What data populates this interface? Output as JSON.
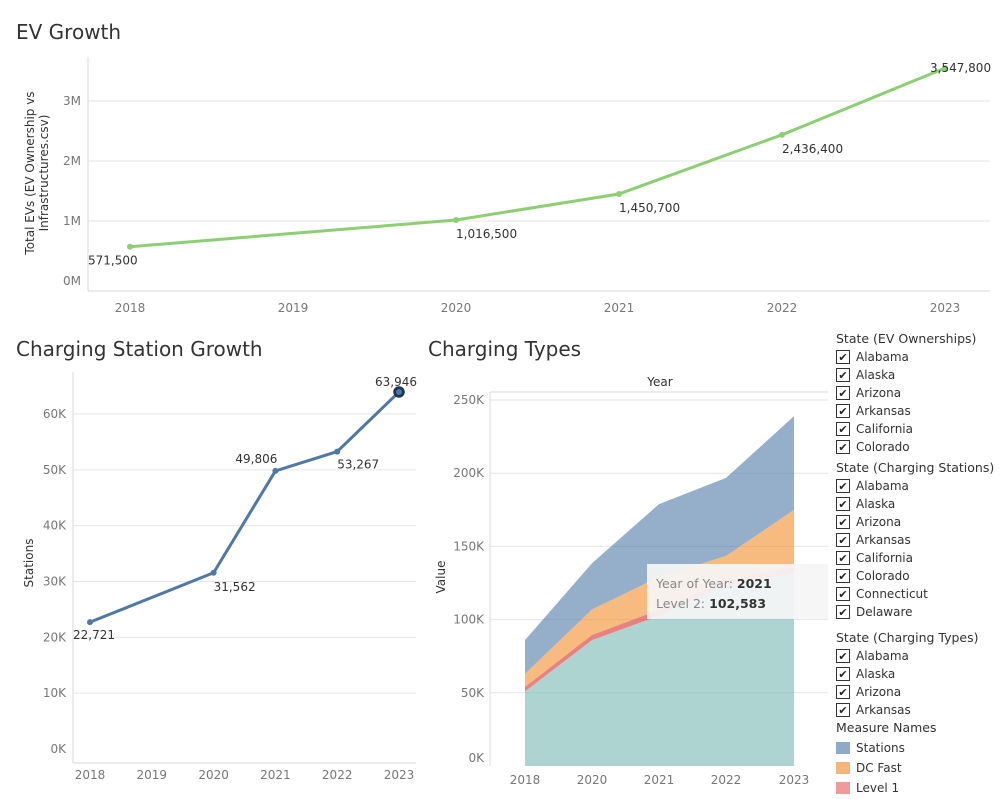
{
  "colors": {
    "ev_line": "#8ccf73",
    "stations": "#4e79a7",
    "dc_fast": "#f28e2b",
    "level1": "#e15759",
    "level2": "#76b7b2",
    "grid": "#e6e6e6",
    "axis": "#d9d9d9"
  },
  "chart_data": [
    {
      "type": "line",
      "title": "EV Growth",
      "ylabel": "Total EVs (EV Ownership vs Infrastructures.csv)",
      "ylabel_lines": [
        "Total EVs (EV Ownership vs",
        "Infrastructures.csv)"
      ],
      "x": [
        2018,
        2019,
        2020,
        2021,
        2022,
        2023
      ],
      "series": [
        {
          "values": [
            571500,
            null,
            1016500,
            1450700,
            2436400,
            3547800
          ]
        }
      ],
      "data_labels": [
        "571,500",
        "",
        "1,016,500",
        "1,450,700",
        "2,436,400",
        "3,547,800"
      ],
      "yticks": [
        0,
        1000000,
        2000000,
        3000000
      ],
      "ytick_labels": [
        "0M",
        "1M",
        "2M",
        "3M"
      ],
      "ylim": [
        0,
        3500000
      ],
      "grid": true
    },
    {
      "type": "line",
      "title": "Charging Station Growth",
      "ylabel": "Stations",
      "x": [
        2018,
        2019,
        2020,
        2021,
        2022,
        2023
      ],
      "series": [
        {
          "values": [
            22721,
            null,
            31562,
            49806,
            53267,
            63946
          ]
        }
      ],
      "data_labels": [
        "22,721",
        "",
        "31,562",
        "49,806",
        "53,267",
        "63,946"
      ],
      "highlight_index": 5,
      "yticks": [
        0,
        10000,
        20000,
        30000,
        40000,
        50000,
        60000
      ],
      "ytick_labels": [
        "0K",
        "10K",
        "20K",
        "30K",
        "40K",
        "50K",
        "60K"
      ],
      "ylim": [
        0,
        65000
      ],
      "grid": true
    },
    {
      "type": "area",
      "stacked": true,
      "title": "Charging Types",
      "header": "Year",
      "ylabel": "Value",
      "x": [
        2018,
        2020,
        2021,
        2022,
        2023
      ],
      "series": [
        {
          "name": "Level 2",
          "values": [
            51000,
            86000,
            102583,
            123000,
            132000
          ]
        },
        {
          "name": "Level 1",
          "values": [
            3000,
            3500,
            4000,
            4000,
            4000
          ]
        },
        {
          "name": "DC Fast",
          "values": [
            9000,
            17500,
            22500,
            16500,
            39000
          ]
        },
        {
          "name": "Stations",
          "values": [
            23000,
            31500,
            49806,
            53267,
            63946
          ]
        }
      ],
      "yticks": [
        0,
        50000,
        100000,
        150000,
        200000,
        250000
      ],
      "ytick_labels": [
        "0K",
        "50K",
        "100K",
        "150K",
        "200K",
        "250K"
      ],
      "ylim": [
        0,
        265000
      ],
      "grid": true
    }
  ],
  "tooltip": {
    "line1_key": "Year of Year:",
    "line1_value": "2021",
    "line2_key": "Level 2:",
    "line2_value": "102,583"
  },
  "filters": [
    {
      "title": "State (EV Ownerships)",
      "items": [
        "Alabama",
        "Alaska",
        "Arizona",
        "Arkansas",
        "California",
        "Colorado"
      ]
    },
    {
      "title": "State (Charging Stations)",
      "items": [
        "Alabama",
        "Alaska",
        "Arizona",
        "Arkansas",
        "California",
        "Colorado",
        "Connecticut",
        "Delaware"
      ]
    },
    {
      "title": "State (Charging Types)",
      "items": [
        "Alabama",
        "Alaska",
        "Arizona",
        "Arkansas"
      ]
    }
  ],
  "legend": {
    "title": "Measure Names",
    "items": [
      {
        "label": "Stations",
        "color": "#8fa9c9"
      },
      {
        "label": "DC Fast",
        "color": "#f5b67a"
      },
      {
        "label": "Level 1",
        "color": "#ee9b9b"
      }
    ]
  },
  "checkmark": "✔"
}
